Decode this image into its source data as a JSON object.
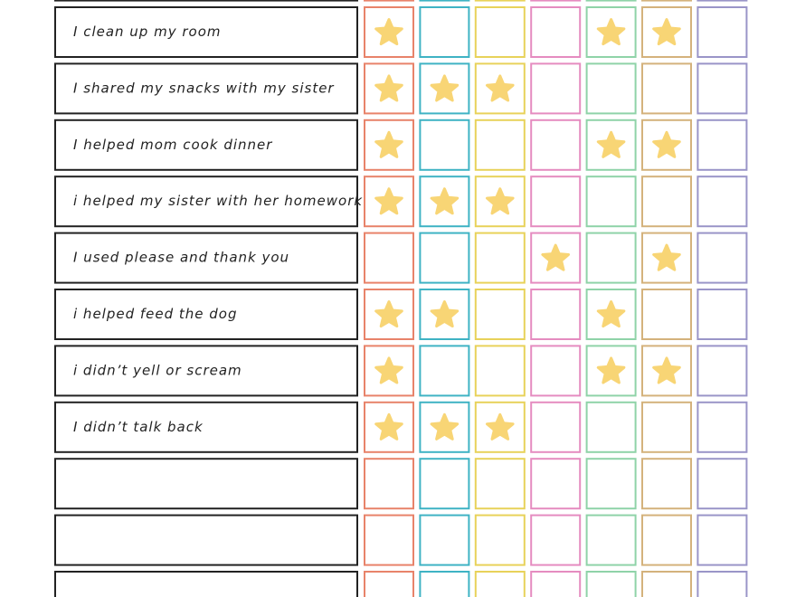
{
  "columns": {
    "colors": [
      "#e8836a",
      "#3fb3c4",
      "#e8d25a",
      "#e58cc0",
      "#8fd3a8",
      "#d4b27c",
      "#9a95c8"
    ],
    "star_color": "#f8d575"
  },
  "rows": [
    {
      "stars": [
        false,
        false,
        false,
        false,
        false,
        false,
        false
      ]
    },
    {
      "label": "I clean up my room",
      "stars": [
        true,
        false,
        false,
        false,
        true,
        true,
        false
      ]
    },
    {
      "label": "I shared my snacks with my sister",
      "stars": [
        true,
        true,
        true,
        false,
        false,
        false,
        false
      ]
    },
    {
      "label": "I helped mom cook dinner",
      "stars": [
        true,
        false,
        false,
        false,
        true,
        true,
        false
      ]
    },
    {
      "label": "i helped my sister with her homework",
      "stars": [
        true,
        true,
        true,
        false,
        false,
        false,
        false
      ]
    },
    {
      "label": "I used please and thank you",
      "stars": [
        false,
        false,
        false,
        true,
        false,
        true,
        false
      ]
    },
    {
      "label": "i helped feed the dog",
      "stars": [
        true,
        true,
        false,
        false,
        true,
        false,
        false
      ]
    },
    {
      "label": "i didn’t yell or scream",
      "stars": [
        true,
        false,
        false,
        false,
        true,
        true,
        false
      ]
    },
    {
      "label": "I didn’t talk back",
      "stars": [
        true,
        true,
        true,
        false,
        false,
        false,
        false
      ]
    },
    {
      "stars": [
        false,
        false,
        false,
        false,
        false,
        false,
        false
      ]
    },
    {
      "stars": [
        false,
        false,
        false,
        false,
        false,
        false,
        false
      ]
    },
    {
      "stars": [
        false,
        false,
        false,
        false,
        false,
        false,
        false
      ]
    }
  ]
}
